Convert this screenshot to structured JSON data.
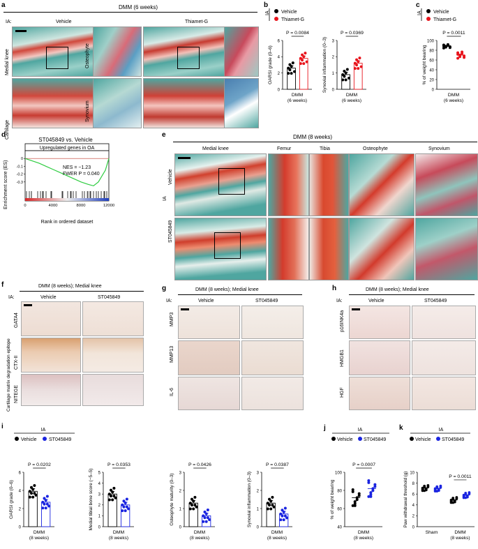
{
  "panels": {
    "a": {
      "label": "a",
      "title": "DMM (6 weeks)",
      "ia": "IA:",
      "col1": "Vehicle",
      "col2": "Thiamet-G",
      "rows": [
        "Medial knee",
        "Cartilage"
      ],
      "insets": [
        "Osteophyte",
        "Synovium"
      ]
    },
    "b": {
      "label": "b",
      "ia": "IA",
      "legend": [
        "Vehicle",
        "Thiamet-G"
      ],
      "p1": "P = 0.0084",
      "p2": "P = 0.0369",
      "ylabel1": "OARSI grade (0–6)",
      "ylabel2": "Synovial inflammation (0–3)",
      "xlabel": "DMM",
      "xsub": "(6 weeks)"
    },
    "c": {
      "label": "c",
      "ia": "IA",
      "legend": [
        "Vehicle",
        "Thiamet-G"
      ],
      "p": "P = 0.0011",
      "ylabel": "% of weight bearing",
      "xlabel": "DMM",
      "xsub": "(6 weeks)"
    },
    "d": {
      "label": "d",
      "title": "ST045849 vs. Vehicle",
      "sub": "Upregulated genes in OA",
      "nes": "NES = −1.23",
      "fwer": "FWER P = 0.040",
      "ylabel": "Enrichment score (ES)",
      "xlabel": "Rank in ordered dataset"
    },
    "e": {
      "label": "e",
      "title": "DMM (8 weeks)",
      "cols": [
        "Medial knee",
        "Femur",
        "Tibia",
        "Osteophyte",
        "Synovium"
      ],
      "rows": [
        "Vehicle",
        "ST045849"
      ],
      "ia": "IA"
    },
    "f": {
      "label": "f",
      "title": "DMM (8 weeks); Medial knee",
      "ia": "IA:",
      "cols": [
        "Vehicle",
        "ST045849"
      ],
      "rows": [
        "GATA4",
        "CTX-II",
        "NITEGE"
      ],
      "side": "Cartilage matrix degradation epitope"
    },
    "g": {
      "label": "g",
      "title": "DMM (8 weeks); Medial knee",
      "ia": "IA:",
      "cols": [
        "Vehicle",
        "ST045849"
      ],
      "rows": [
        "MMP3",
        "MMP13",
        "IL-6"
      ]
    },
    "h": {
      "label": "h",
      "title": "DMM (8 weeks); Medial knee",
      "ia": "IA:",
      "cols": [
        "Vehicle",
        "ST045849"
      ],
      "rows": [
        "p16INK4a",
        "HMGB1",
        "HGF"
      ]
    },
    "i": {
      "label": "i",
      "ia": "IA",
      "legend": [
        "Vehicle",
        "ST045849"
      ],
      "p": [
        "P = 0.0202",
        "P = 0.0353",
        "P = 0.0426",
        "P = 0.0387"
      ],
      "ylabels": [
        "OARSI grade (0–6)",
        "Medial tibial bone score (−5–5)",
        "Osteophyte maturity (0–3)",
        "Synovial inflammation (0–3)"
      ],
      "xlabel": "DMM",
      "xsub": "(8 weeks)"
    },
    "j": {
      "label": "j",
      "ia": "IA",
      "legend": [
        "Vehicle",
        "ST045849"
      ],
      "p": "P = 0.0007",
      "ylabel": "% of weight bearing",
      "xlabel": "DMM",
      "xsub": "(8 weeks)"
    },
    "k": {
      "label": "k",
      "ia": "IA",
      "legend": [
        "Vehicle",
        "ST045849"
      ],
      "p": "P = 0.0011",
      "ylabel": "Paw withdrawal threshold (g)",
      "x1": "Sham",
      "xlabel": "DMM",
      "xsub": "(8 weeks)"
    }
  },
  "colors": {
    "vehicle": "#000000",
    "thiamet": "#e8141c",
    "st045849": "#1a24e0",
    "safranin_red": "#c8302a",
    "fast_green": "#4fa6a0"
  },
  "chart_data": [
    {
      "type": "bar",
      "panel": "b1",
      "categories": [
        "Vehicle",
        "Thiamet-G"
      ],
      "values": [
        2.6,
        3.8
      ],
      "ylim": [
        0,
        6
      ],
      "ylabel": "OARSI grade (0–6)",
      "xlabel": "DMM (6 weeks)"
    },
    {
      "type": "bar",
      "panel": "b2",
      "categories": [
        "Vehicle",
        "Thiamet-G"
      ],
      "values": [
        0.9,
        1.6
      ],
      "ylim": [
        0,
        3
      ],
      "ylabel": "Synovial inflammation (0–3)",
      "xlabel": "DMM (6 weeks)"
    },
    {
      "type": "scatter",
      "panel": "c",
      "categories": [
        "Vehicle",
        "Thiamet-G"
      ],
      "values": [
        88,
        70
      ],
      "ylim": [
        0,
        100
      ],
      "ylabel": "% of weight bearing",
      "xlabel": "DMM (6 weeks)"
    },
    {
      "type": "line",
      "panel": "d",
      "xlim": [
        0,
        12000
      ],
      "ylim": [
        -0.4,
        0.1
      ],
      "x": [
        0,
        1000,
        2000,
        3000,
        4000,
        5000,
        6000,
        7000,
        8000,
        9000,
        9800,
        10500,
        11500,
        12000
      ],
      "y": [
        0,
        -0.03,
        -0.06,
        -0.1,
        -0.14,
        -0.18,
        -0.22,
        -0.26,
        -0.3,
        -0.33,
        -0.35,
        -0.3,
        -0.15,
        0
      ],
      "xlabel": "Rank in ordered dataset",
      "ylabel": "Enrichment score (ES)"
    },
    {
      "type": "bar",
      "panel": "i1",
      "categories": [
        "Vehicle",
        "ST045849"
      ],
      "values": [
        3.9,
        2.7
      ],
      "ylim": [
        0,
        6
      ],
      "ylabel": "OARSI grade (0–6)"
    },
    {
      "type": "bar",
      "panel": "i2",
      "categories": [
        "Vehicle",
        "ST045849"
      ],
      "values": [
        3.0,
        2.0
      ],
      "ylim": [
        0,
        5
      ],
      "ylabel": "Medial tibial bone score (−5–5)"
    },
    {
      "type": "bar",
      "panel": "i3",
      "categories": [
        "Vehicle",
        "ST045849"
      ],
      "values": [
        1.3,
        0.6
      ],
      "ylim": [
        0,
        3
      ],
      "ylabel": "Osteophyte maturity (0–3)"
    },
    {
      "type": "bar",
      "panel": "i4",
      "categories": [
        "Vehicle",
        "ST045849"
      ],
      "values": [
        1.3,
        0.7
      ],
      "ylim": [
        0,
        3
      ],
      "ylabel": "Synovial inflammation (0–3)"
    },
    {
      "type": "scatter",
      "panel": "j",
      "categories": [
        "Vehicle",
        "ST045849"
      ],
      "values": [
        72,
        82
      ],
      "ylim": [
        40,
        100
      ],
      "ylabel": "% of weight bearing"
    },
    {
      "type": "scatter",
      "panel": "k",
      "categories": [
        "Sham Vehicle",
        "Sham ST045849",
        "DMM Vehicle",
        "DMM ST045849"
      ],
      "values": [
        7.1,
        7.0,
        4.9,
        5.8
      ],
      "ylim": [
        0,
        10
      ],
      "ylabel": "Paw withdrawal threshold (g)"
    }
  ]
}
